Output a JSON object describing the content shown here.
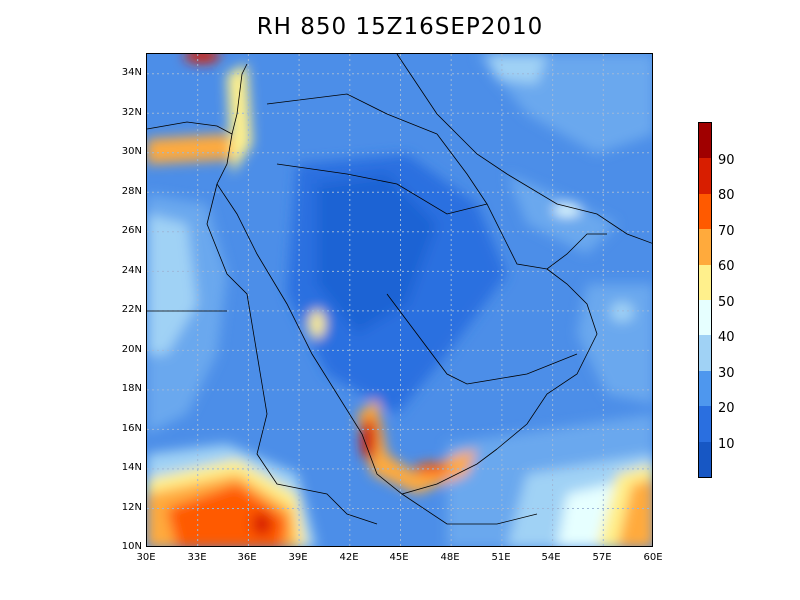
{
  "title": "RH 850 15Z16SEP2010",
  "y_ticks": [
    "34N",
    "32N",
    "30N",
    "28N",
    "26N",
    "24N",
    "22N",
    "20N",
    "18N",
    "16N",
    "14N",
    "12N",
    "10N"
  ],
  "x_ticks": [
    "30E",
    "33E",
    "36E",
    "39E",
    "42E",
    "45E",
    "48E",
    "51E",
    "54E",
    "57E",
    "60E"
  ],
  "colorbar_labels": [
    "90",
    "80",
    "70",
    "60",
    "50",
    "40",
    "30",
    "20",
    "10"
  ],
  "colorbar_colors": [
    "#a00000",
    "#d81e00",
    "#ff5a00",
    "#ffaa3c",
    "#fff08c",
    "#e6ffff",
    "#a0d2f5",
    "#4e97ee",
    "#2a6fe0",
    "#1757c4"
  ],
  "map": {
    "lon_range": [
      30,
      60
    ],
    "lat_range": [
      10,
      35
    ],
    "background_color": "#4c8ee8"
  }
}
